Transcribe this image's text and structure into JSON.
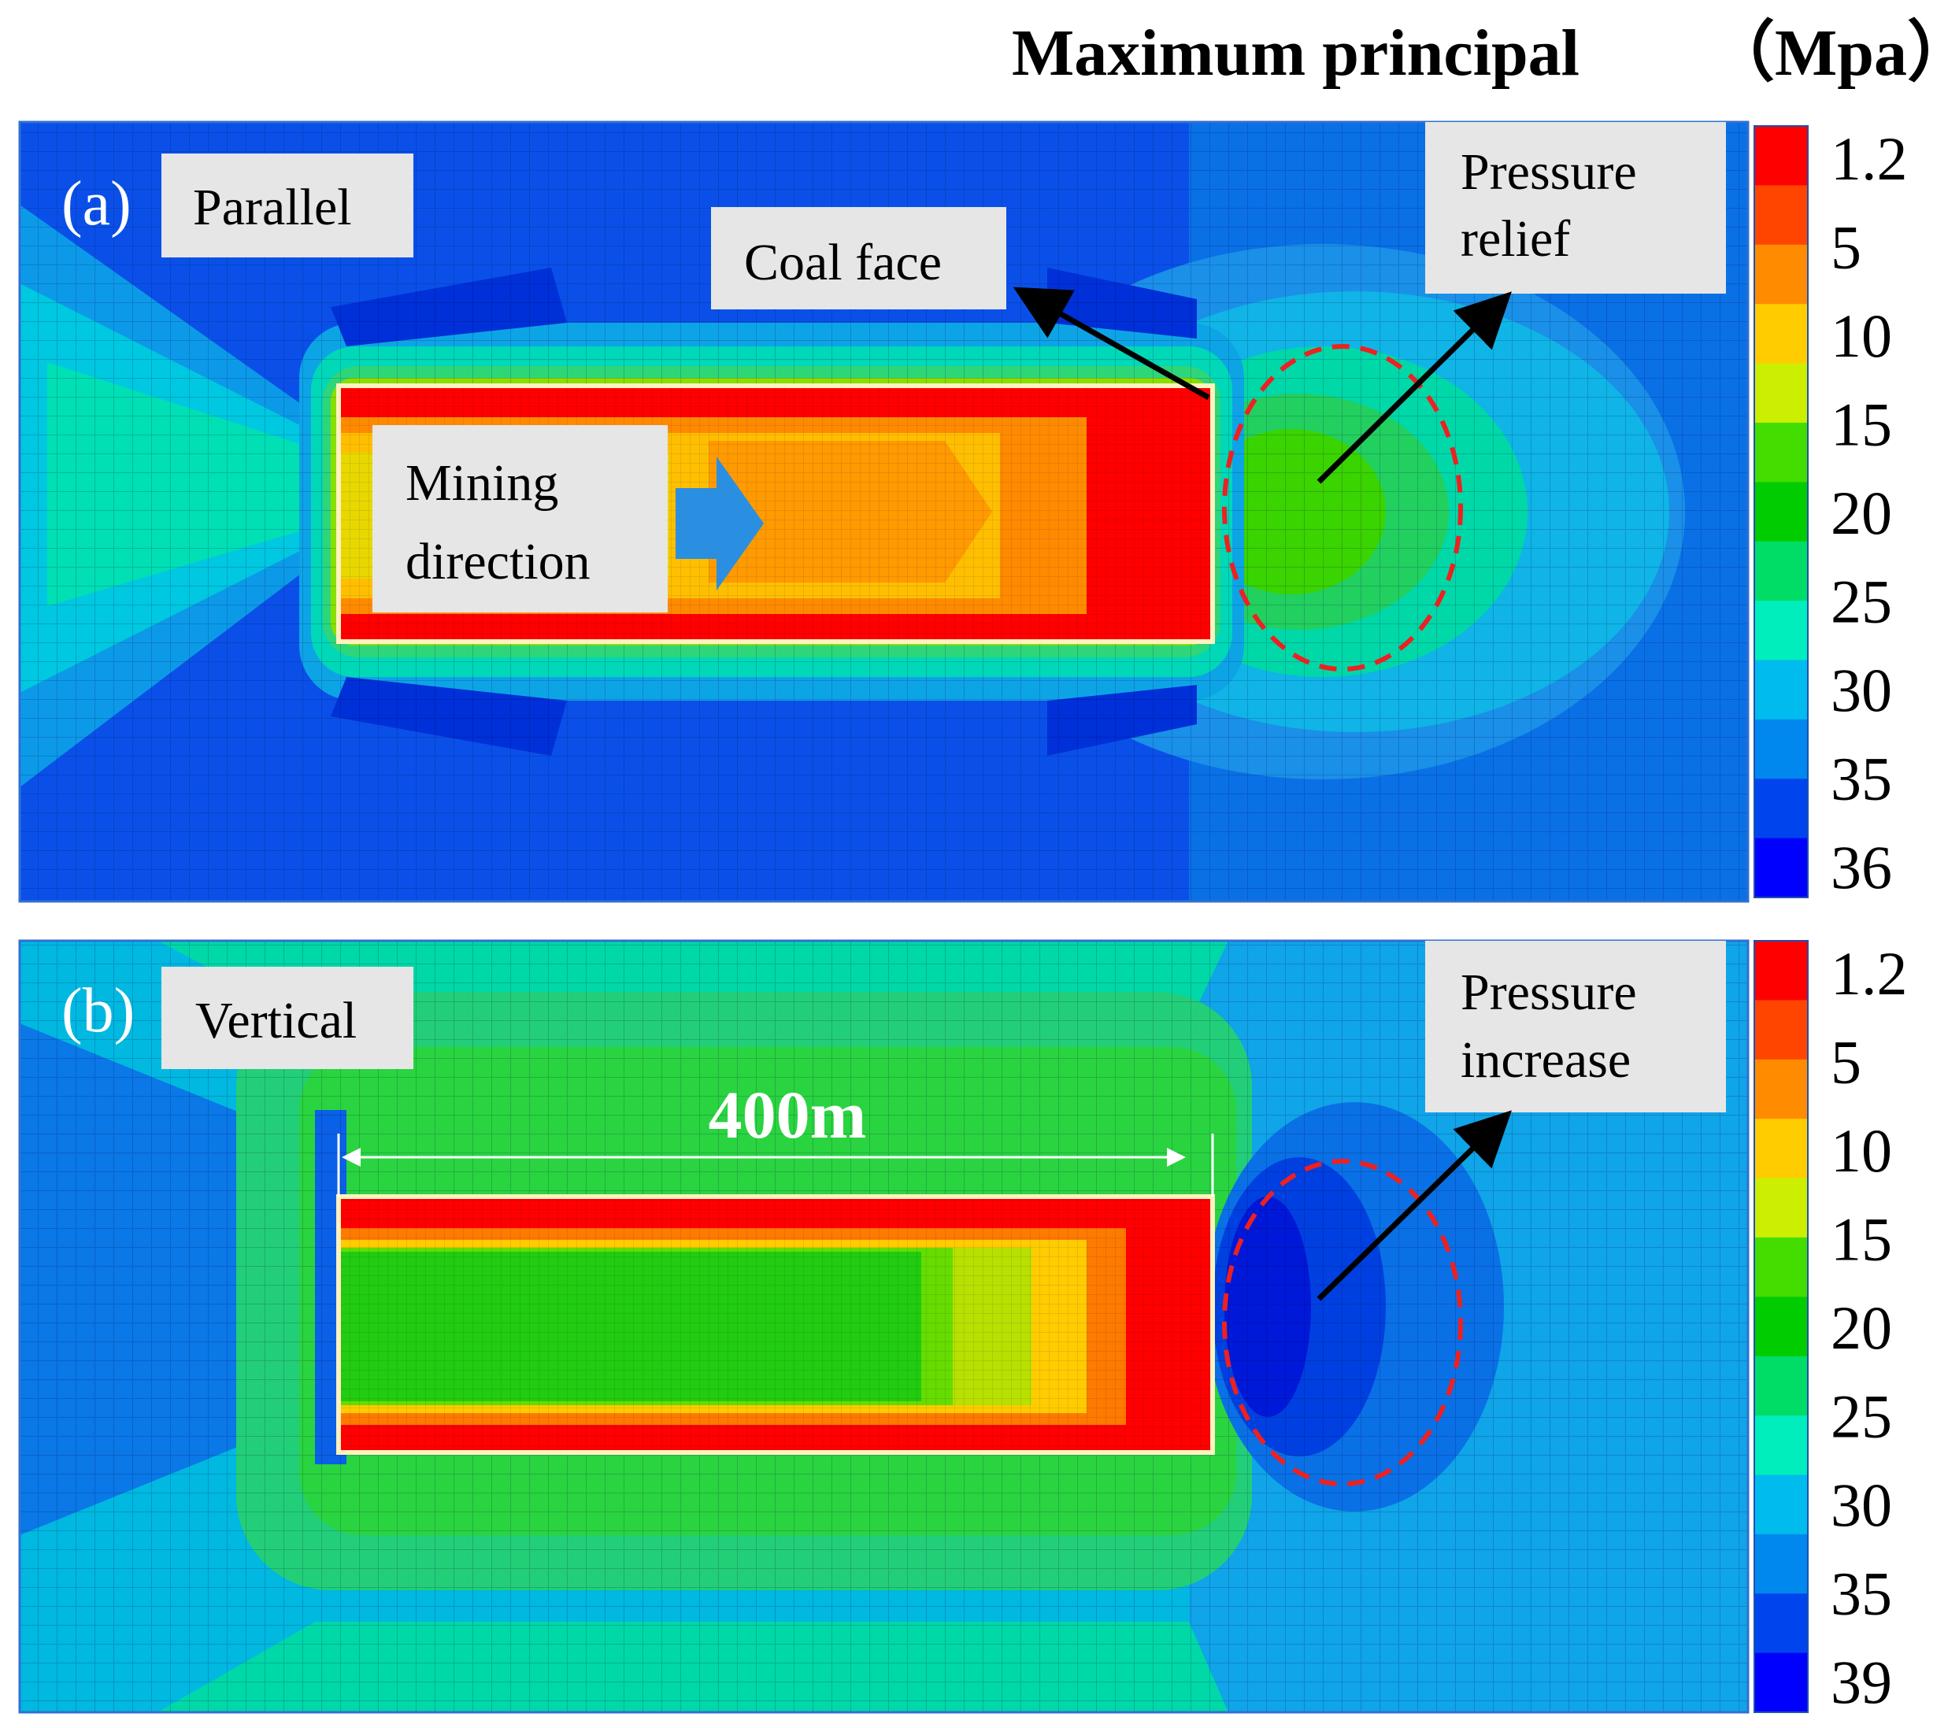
{
  "figure": {
    "title": "Maximum principal",
    "unit": "（Mpa）"
  },
  "palette": [
    "#ff0000",
    "#ff4500",
    "#ff8c00",
    "#ffcc00",
    "#ccee00",
    "#44dd00",
    "#00cc00",
    "#00dd66",
    "#00eebb",
    "#00bbee",
    "#0088ee",
    "#0044ee",
    "#0000ff"
  ],
  "panels": [
    {
      "id": "a",
      "tag": "(a)",
      "mode": "Parallel",
      "legend_ticks": [
        "1.2",
        "5",
        "10",
        "15",
        "20",
        "25",
        "30",
        "35",
        "36"
      ],
      "callouts": {
        "coal_face": "Coal face",
        "mining_direction": [
          "Mining",
          "direction"
        ],
        "zone_note": [
          "Pressure",
          "relief"
        ]
      }
    },
    {
      "id": "b",
      "tag": "(b)",
      "mode": "Vertical",
      "legend_ticks": [
        "1.2",
        "5",
        "10",
        "15",
        "20",
        "25",
        "30",
        "35",
        "39"
      ],
      "dimension": "400m",
      "callouts": {
        "zone_note": [
          "Pressure",
          "increase"
        ]
      }
    }
  ]
}
